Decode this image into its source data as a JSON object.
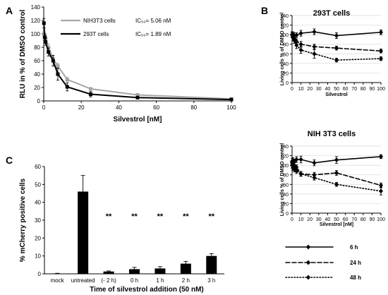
{
  "panels": {
    "A": "A",
    "B": "B",
    "C": "C"
  },
  "chart_data": [
    {
      "id": "A",
      "type": "line",
      "title": "",
      "xlabel": "Silvestrol [nM]",
      "ylabel": "RLU in % of DMSO control",
      "xlim": [
        0,
        100
      ],
      "ylim": [
        0,
        140
      ],
      "xticks": [
        0,
        20,
        40,
        60,
        80,
        100
      ],
      "yticks": [
        0,
        20,
        40,
        60,
        80,
        100,
        120,
        140
      ],
      "grid": false,
      "legend_position": "top-right",
      "series": [
        {
          "name": "NIH3T3  cells",
          "annotation": "IC₅₀= 5.06 nM",
          "color": "#a6a6a6",
          "x": [
            0.1,
            0.5,
            1,
            2.5,
            5,
            7.5,
            12.5,
            25,
            50,
            100
          ],
          "y": [
            100,
            98,
            94,
            80,
            63,
            52,
            32,
            18,
            9,
            3
          ],
          "err": [
            4,
            4,
            4,
            5,
            5,
            4,
            3,
            2,
            1,
            1
          ]
        },
        {
          "name": "293T cells",
          "annotation": "IC₅₀= 1.89 nM",
          "color": "#000000",
          "x": [
            0.1,
            0.5,
            1,
            2.5,
            5,
            7.5,
            12.5,
            25,
            50,
            100
          ],
          "y": [
            116,
            95,
            88,
            73,
            60,
            40,
            21,
            10,
            5,
            2
          ],
          "err": [
            7,
            5,
            5,
            6,
            8,
            9,
            6,
            4,
            2,
            1
          ]
        }
      ]
    },
    {
      "id": "B1",
      "type": "line",
      "title": "293T cells",
      "xlabel": "Silvestrol",
      "ylabel": "Living cells % of DMSO control",
      "xlim": [
        0,
        100
      ],
      "ylim": [
        0,
        140
      ],
      "xticks": [
        0,
        10,
        20,
        30,
        40,
        50,
        60,
        70,
        80,
        90,
        100
      ],
      "yticks": [
        0,
        20,
        40,
        60,
        80,
        100,
        120,
        140
      ],
      "grid": true,
      "series": [
        {
          "name": "6 h",
          "dash": "solid",
          "x": [
            0,
            1,
            2.5,
            5,
            10,
            25,
            50,
            100
          ],
          "y": [
            100,
            101,
            98,
            99,
            103,
            106,
            98,
            105
          ],
          "err": [
            5,
            5,
            6,
            5,
            6,
            6,
            6,
            5
          ]
        },
        {
          "name": "24 h",
          "dash": "dashed",
          "x": [
            0,
            1,
            2.5,
            5,
            10,
            25,
            50,
            100
          ],
          "y": [
            100,
            97,
            92,
            86,
            80,
            75,
            72,
            66
          ],
          "err": [
            5,
            5,
            5,
            5,
            6,
            5,
            4,
            4
          ]
        },
        {
          "name": "48 h",
          "dash": "dotted",
          "x": [
            0,
            1,
            2.5,
            5,
            10,
            25,
            50,
            100
          ],
          "y": [
            100,
            94,
            88,
            78,
            68,
            60,
            47,
            50
          ],
          "err": [
            6,
            6,
            6,
            7,
            7,
            9,
            4,
            4
          ]
        }
      ]
    },
    {
      "id": "B2",
      "type": "line",
      "title": "NIH 3T3 cells",
      "xlabel": "Silvestrol [nM]",
      "ylabel": "Living cells % of DMSO control",
      "xlim": [
        0,
        100
      ],
      "ylim": [
        0,
        140
      ],
      "xticks": [
        0,
        10,
        20,
        30,
        40,
        50,
        60,
        70,
        80,
        90,
        100
      ],
      "yticks": [
        0,
        20,
        40,
        60,
        80,
        100,
        120,
        140
      ],
      "grid": true,
      "series": [
        {
          "name": "6 h",
          "dash": "solid",
          "x": [
            0,
            1,
            2.5,
            5,
            10,
            25,
            50,
            100
          ],
          "y": [
            108,
            110,
            107,
            112,
            112,
            105,
            111,
            118
          ],
          "err": [
            6,
            6,
            6,
            6,
            7,
            6,
            7,
            4
          ]
        },
        {
          "name": "24 h",
          "dash": "dashed",
          "x": [
            0,
            1,
            2.5,
            5,
            10,
            25,
            50,
            100
          ],
          "y": [
            105,
            103,
            100,
            96,
            82,
            80,
            84,
            58
          ],
          "err": [
            5,
            6,
            6,
            5,
            5,
            5,
            5,
            5
          ]
        },
        {
          "name": "48 h",
          "dash": "dotted",
          "x": [
            0,
            1,
            2.5,
            5,
            10,
            25,
            50,
            100
          ],
          "y": [
            100,
            95,
            92,
            88,
            82,
            74,
            60,
            46
          ],
          "err": [
            6,
            6,
            6,
            5,
            5,
            5,
            4,
            8
          ]
        }
      ]
    },
    {
      "id": "C",
      "type": "bar",
      "title": "",
      "xlabel": "Time of silvestrol  addition (50 nM)",
      "ylabel": "% mCherry positive cells",
      "ylim": [
        0,
        60
      ],
      "yticks": [
        0,
        10,
        20,
        30,
        40,
        50,
        60
      ],
      "categories": [
        "mock",
        "untreated",
        "(- 2 h)",
        "0 h",
        "1 h",
        "2 h",
        "3 h"
      ],
      "values": [
        0.2,
        46,
        1.3,
        2.6,
        3.0,
        5.7,
        10
      ],
      "err": [
        0.1,
        9,
        0.3,
        1.0,
        1.0,
        1.2,
        1.3
      ],
      "annotations": [
        "",
        "",
        "**",
        "**",
        "**",
        "**",
        "**"
      ]
    }
  ],
  "legend": {
    "items": [
      {
        "label": "6 h",
        "dash": "solid"
      },
      {
        "label": "24 h",
        "dash": "dashed"
      },
      {
        "label": "48 h",
        "dash": "dotted"
      }
    ]
  }
}
